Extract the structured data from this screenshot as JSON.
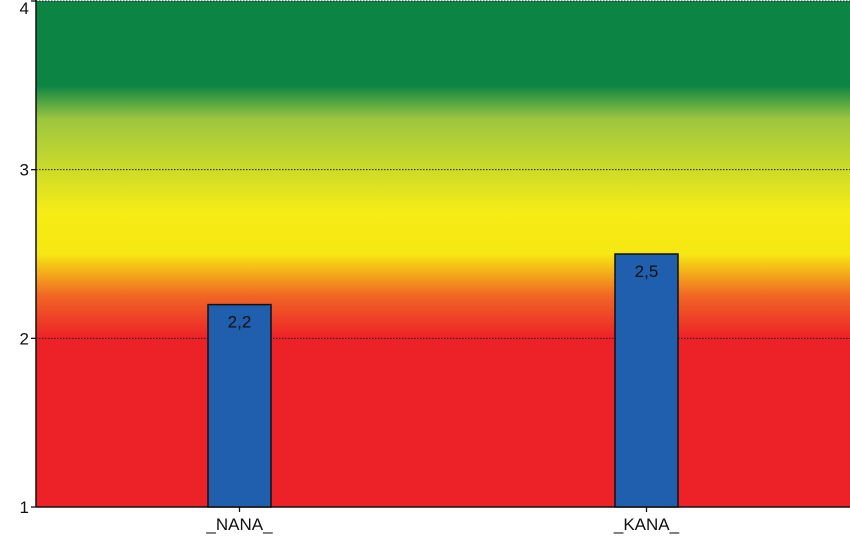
{
  "chart_data": {
    "type": "bar",
    "categories": [
      "_NANA_",
      "_KANA_"
    ],
    "values": [
      2.2,
      2.5
    ],
    "value_labels": [
      "2,2",
      "2,5"
    ],
    "ylim": [
      1,
      4
    ],
    "y_ticks": [
      {
        "value": 1,
        "label": "1"
      },
      {
        "value": 2,
        "label": "2"
      },
      {
        "value": 3,
        "label": "3"
      },
      {
        "value": 4,
        "label": "4"
      }
    ],
    "title": "",
    "xlabel": "",
    "ylabel": "",
    "grid": "horizontal dotted",
    "legend": "none",
    "bar_color": "#1f5fae",
    "background_bands": [
      {
        "value": 4.0,
        "color": "#0b8444"
      },
      {
        "value": 3.5,
        "color": "#0b8444"
      },
      {
        "value": 3.3,
        "color": "#9cc640"
      },
      {
        "value": 2.75,
        "color": "#f6ec16"
      },
      {
        "value": 2.5,
        "color": "#f6e712"
      },
      {
        "value": 2.25,
        "color": "#f06525"
      },
      {
        "value": 2.0,
        "color": "#ed2128"
      },
      {
        "value": 1.0,
        "color": "#ed2128"
      }
    ]
  }
}
